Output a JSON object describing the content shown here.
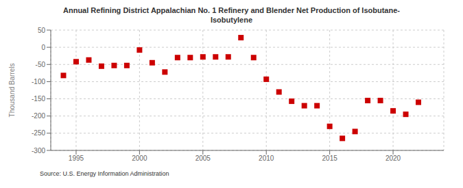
{
  "chart_data": {
    "type": "scatter",
    "title": "Annual Refining District Appalachian No. 1 Refinery and Blender Net Production of Isobutane-\nIsobutylene",
    "ylabel": "Thousand Barrels",
    "source": "Source: U.S. Energy Information Administration",
    "x": [
      1994,
      1995,
      1996,
      1997,
      1998,
      1999,
      2000,
      2001,
      2002,
      2003,
      2004,
      2005,
      2006,
      2007,
      2008,
      2009,
      2010,
      2011,
      2012,
      2013,
      2014,
      2015,
      2016,
      2017,
      2018,
      2019,
      2020,
      2021,
      2022
    ],
    "values": [
      -82,
      -42,
      -37,
      -55,
      -53,
      -53,
      -8,
      -45,
      -72,
      -30,
      -30,
      -28,
      -28,
      -28,
      28,
      -30,
      -93,
      -130,
      -157,
      -170,
      -170,
      -230,
      -265,
      -245,
      -155,
      -155,
      -185,
      -195,
      -160
    ],
    "color": "#cc0000",
    "marker": "square",
    "xlim": [
      1993,
      2024
    ],
    "xticks": [
      1995,
      2000,
      2005,
      2010,
      2015,
      2020
    ],
    "ylim": [
      -300,
      50
    ],
    "yticks": [
      50,
      0,
      -50,
      -100,
      -150,
      -200,
      -250,
      -300
    ],
    "grid": true
  }
}
